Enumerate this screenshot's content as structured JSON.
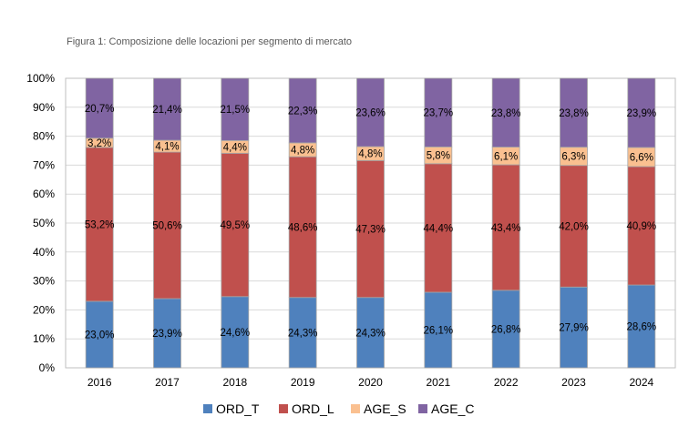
{
  "chart_data": {
    "type": "bar",
    "stacked": true,
    "title": "Figura 1: Composizione delle locazioni per segmento di mercato",
    "categories": [
      "2016",
      "2017",
      "2018",
      "2019",
      "2020",
      "2021",
      "2022",
      "2023",
      "2024"
    ],
    "ylim": [
      0,
      100
    ],
    "yticks": [
      "0%",
      "10%",
      "20%",
      "30%",
      "40%",
      "50%",
      "60%",
      "70%",
      "80%",
      "90%",
      "100%"
    ],
    "grid": true,
    "legend": "bottom",
    "series": [
      {
        "name": "ORD_T",
        "color": "#4F81BD",
        "values": [
          23.0,
          23.9,
          24.6,
          24.3,
          24.3,
          26.1,
          26.8,
          27.9,
          28.6
        ],
        "labels": [
          "23,0%",
          "23,9%",
          "24,6%",
          "24,3%",
          "24,3%",
          "26,1%",
          "26,8%",
          "27,9%",
          "28,6%"
        ]
      },
      {
        "name": "ORD_L",
        "color": "#C0504D",
        "values": [
          53.2,
          50.6,
          49.5,
          48.6,
          47.3,
          44.4,
          43.4,
          42.0,
          40.9
        ],
        "labels": [
          "53,2%",
          "50,6%",
          "49,5%",
          "48,6%",
          "47,3%",
          "44,4%",
          "43,4%",
          "42,0%",
          "40,9%"
        ]
      },
      {
        "name": "AGE_S",
        "color": "#FAC090",
        "values": [
          3.2,
          4.1,
          4.4,
          4.8,
          4.8,
          5.8,
          6.1,
          6.3,
          6.6
        ],
        "labels": [
          "3,2%",
          "4,1%",
          "4,4%",
          "4,8%",
          "4,8%",
          "5,8%",
          "6,1%",
          "6,3%",
          "6,6%"
        ]
      },
      {
        "name": "AGE_C",
        "color": "#8064A2",
        "values": [
          20.7,
          21.4,
          21.5,
          22.3,
          23.6,
          23.7,
          23.8,
          23.8,
          23.9
        ],
        "labels": [
          "20,7%",
          "21,4%",
          "21,5%",
          "22,3%",
          "23,6%",
          "23,7%",
          "23,8%",
          "23,8%",
          "23,9%"
        ]
      }
    ]
  }
}
